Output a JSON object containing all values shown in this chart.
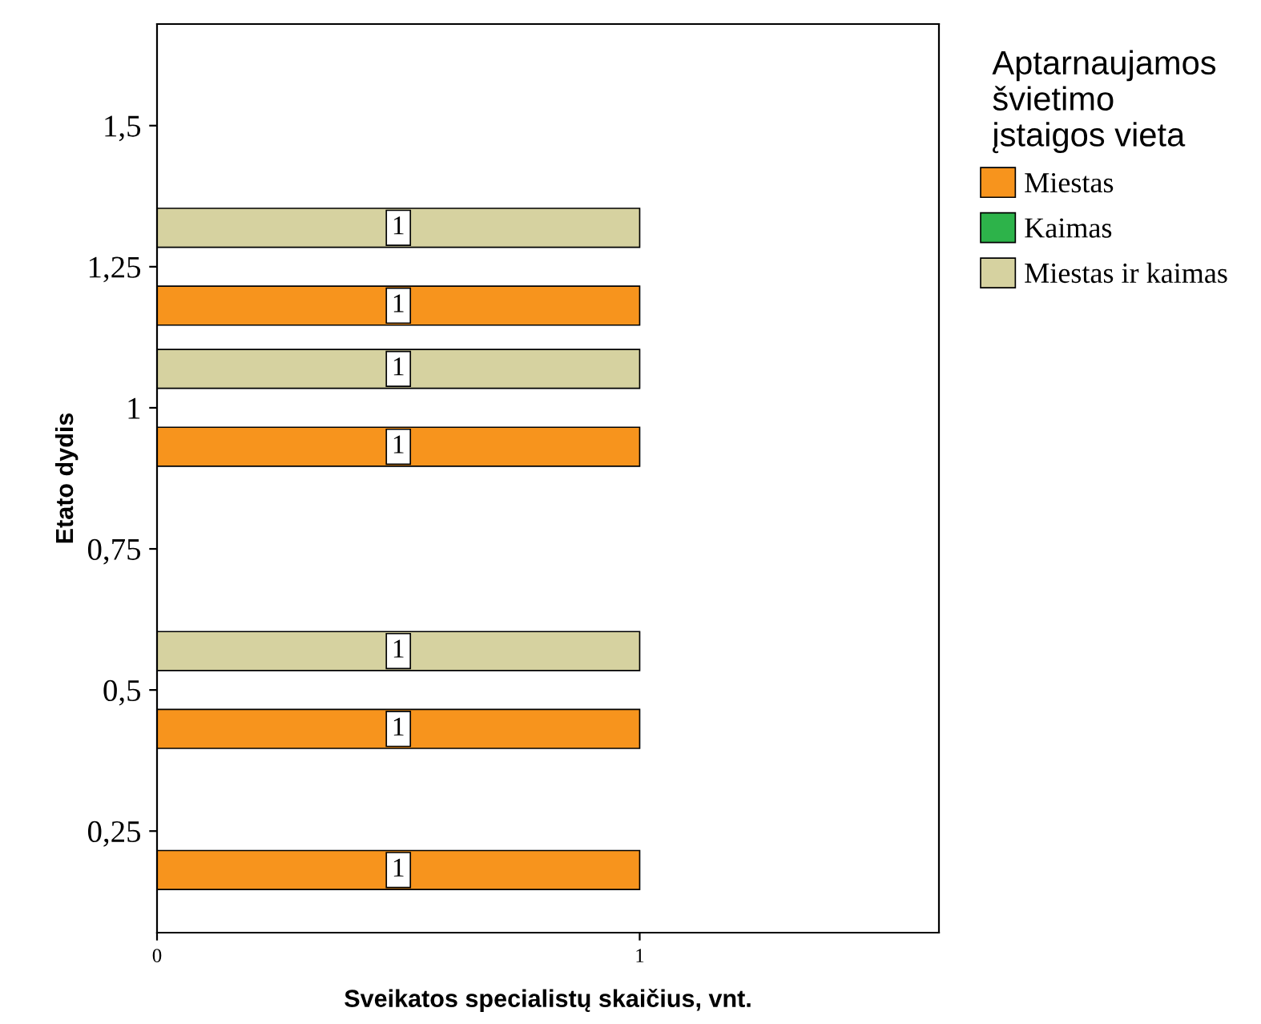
{
  "chart_data": {
    "type": "bar",
    "orientation": "horizontal",
    "xlabel": "Sveikatos specialistų skaičius, vnt.",
    "ylabel": "Etato dydis",
    "legend_title": "Aptarnaujamos\nšvietimo\nįstaigos vieta",
    "legend": "top right",
    "x": [
      0.25,
      0.5,
      1,
      1.25
    ],
    "series": [
      {
        "name": "Miestas",
        "color": "#f7941d",
        "values": [
          1,
          1,
          1,
          1
        ]
      },
      {
        "name": "Kaimas",
        "color": "#2db34a",
        "values": [
          null,
          null,
          null,
          null
        ]
      },
      {
        "name": "Miestas ir kaimas",
        "color": "#d6d2a0",
        "values": [
          null,
          1,
          1,
          1
        ]
      }
    ],
    "xlim": [
      0,
      1.62
    ],
    "xticks": [
      0,
      1
    ],
    "ylim": [
      0.07,
      1.68
    ],
    "yticks": [
      {
        "value": 0.25,
        "label": "0,25"
      },
      {
        "value": 0.5,
        "label": "0,5"
      },
      {
        "value": 0.75,
        "label": "0,75"
      },
      1,
      {
        "value": 1.25,
        "label": "1,25"
      },
      {
        "value": 1.5,
        "label": "1,5"
      }
    ],
    "data_labels": true,
    "grid": false
  }
}
